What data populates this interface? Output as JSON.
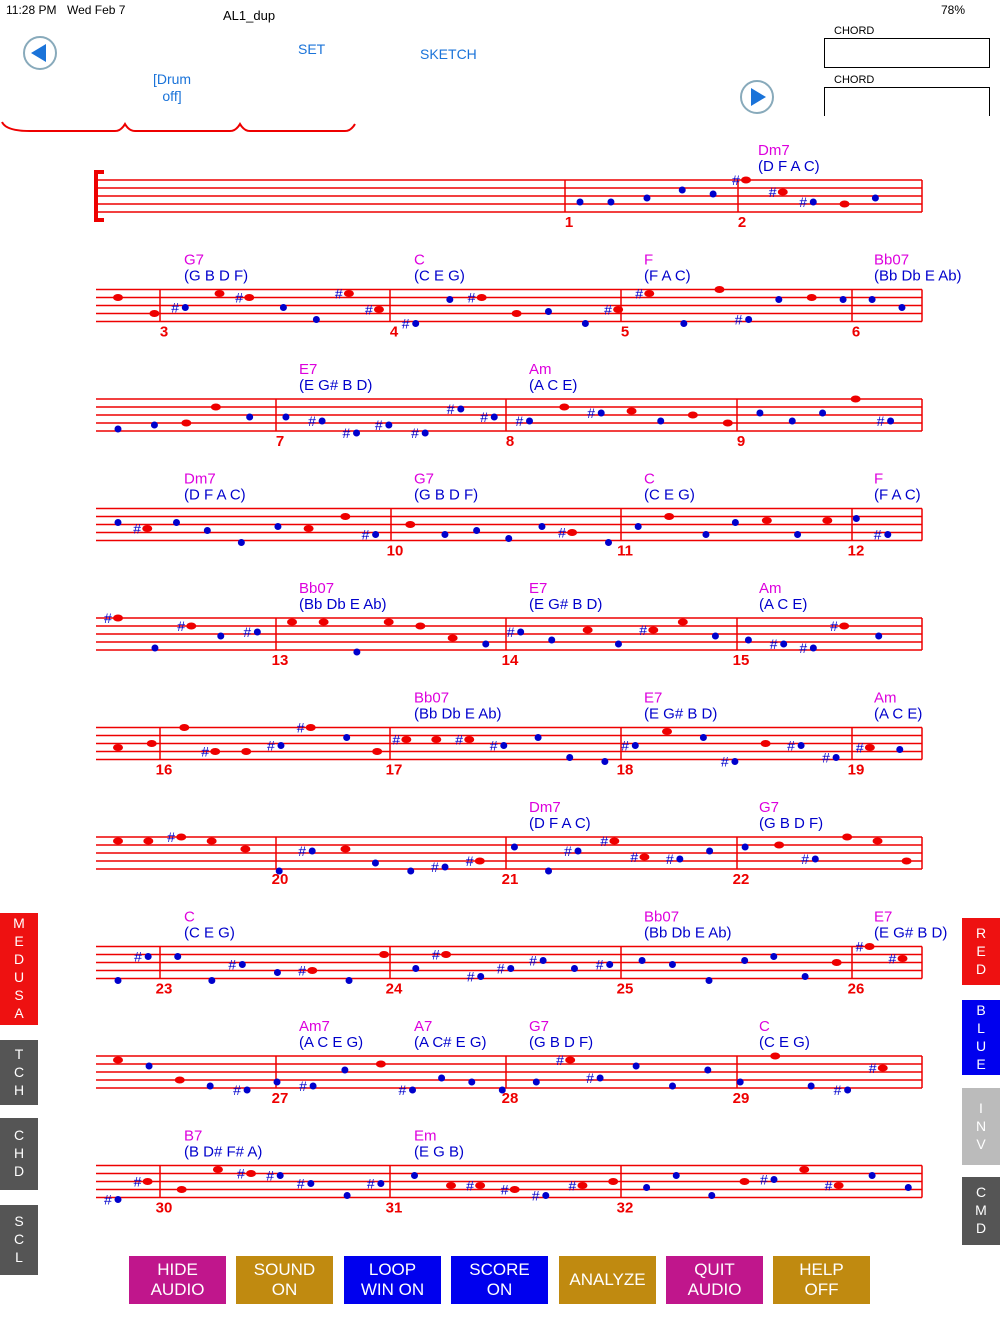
{
  "status": {
    "time": "11:28 PM",
    "date": "Wed Feb 7",
    "battery": "78%"
  },
  "title": "AL1_dup",
  "controls": {
    "set": "SET",
    "sketch": "SKETCH",
    "drum": "[Drum off]"
  },
  "chord_boxes": [
    "CHORD",
    "CHORD"
  ],
  "rows": [
    {
      "measures": [
        1,
        2
      ],
      "chords": [
        {
          "name": "Dm7",
          "notes": "(D F A C)"
        }
      ]
    },
    {
      "measures": [
        3,
        4,
        5,
        6
      ],
      "chords": [
        {
          "name": "G7",
          "notes": "(G B D F)"
        },
        {
          "name": "C",
          "notes": "(C E G)"
        },
        {
          "name": "F",
          "notes": "(F A C)"
        },
        {
          "name": "Bb07",
          "notes": "(Bb Db E Ab)"
        }
      ]
    },
    {
      "measures": [
        7,
        8,
        9
      ],
      "chords": [
        {
          "name": "E7",
          "notes": "(E G# B D)"
        },
        {
          "name": "Am",
          "notes": "(A C E)"
        }
      ]
    },
    {
      "measures": [
        10,
        11,
        12
      ],
      "chords": [
        {
          "name": "Dm7",
          "notes": "(D F A C)"
        },
        {
          "name": "G7",
          "notes": "(G B D F)"
        },
        {
          "name": "C",
          "notes": "(C E G)"
        },
        {
          "name": "F",
          "notes": "(F A C)"
        }
      ]
    },
    {
      "measures": [
        13,
        14,
        15
      ],
      "chords": [
        {
          "name": "Bb07",
          "notes": "(Bb Db E Ab)"
        },
        {
          "name": "E7",
          "notes": "(E G# B D)"
        },
        {
          "name": "Am",
          "notes": "(A C E)"
        }
      ]
    },
    {
      "measures": [
        16,
        17,
        18,
        19
      ],
      "chords": [
        {
          "name": "Bb07",
          "notes": "(Bb Db E Ab)"
        },
        {
          "name": "E7",
          "notes": "(E G# B D)"
        },
        {
          "name": "Am",
          "notes": "(A C E)"
        }
      ]
    },
    {
      "measures": [
        20,
        21,
        22
      ],
      "chords": [
        {
          "name": "Dm7",
          "notes": "(D F A C)"
        },
        {
          "name": "G7",
          "notes": "(G B D F)"
        }
      ]
    },
    {
      "measures": [
        23,
        24,
        25,
        26
      ],
      "chords": [
        {
          "name": "C",
          "notes": "(C E G)"
        },
        {
          "name": "Bb07",
          "notes": "(Bb Db E Ab)"
        },
        {
          "name": "E7",
          "notes": "(E G# B D)"
        }
      ]
    },
    {
      "measures": [
        27,
        28,
        29
      ],
      "chords": [
        {
          "name": "Am7",
          "notes": "(A C E G)"
        },
        {
          "name": "A7",
          "notes": "(A C# E G)"
        },
        {
          "name": "G7",
          "notes": "(G B D F)"
        },
        {
          "name": "C",
          "notes": "(C E G)"
        }
      ]
    },
    {
      "measures": [
        30,
        31,
        32
      ],
      "chords": [
        {
          "name": "B7",
          "notes": "(B D# F# A)"
        },
        {
          "name": "Em",
          "notes": "(E G B)"
        }
      ]
    }
  ],
  "left_tabs": [
    "MEDUSA",
    "TCH",
    "CHD",
    "SCL"
  ],
  "right_tabs": [
    "RED",
    "BLUE",
    "INV",
    "CMD"
  ],
  "buttons": [
    "HIDE AUDIO",
    "SOUND ON",
    "LOOP WIN ON",
    "SCORE ON",
    "ANALYZE",
    "QUIT AUDIO",
    "HELP OFF"
  ]
}
